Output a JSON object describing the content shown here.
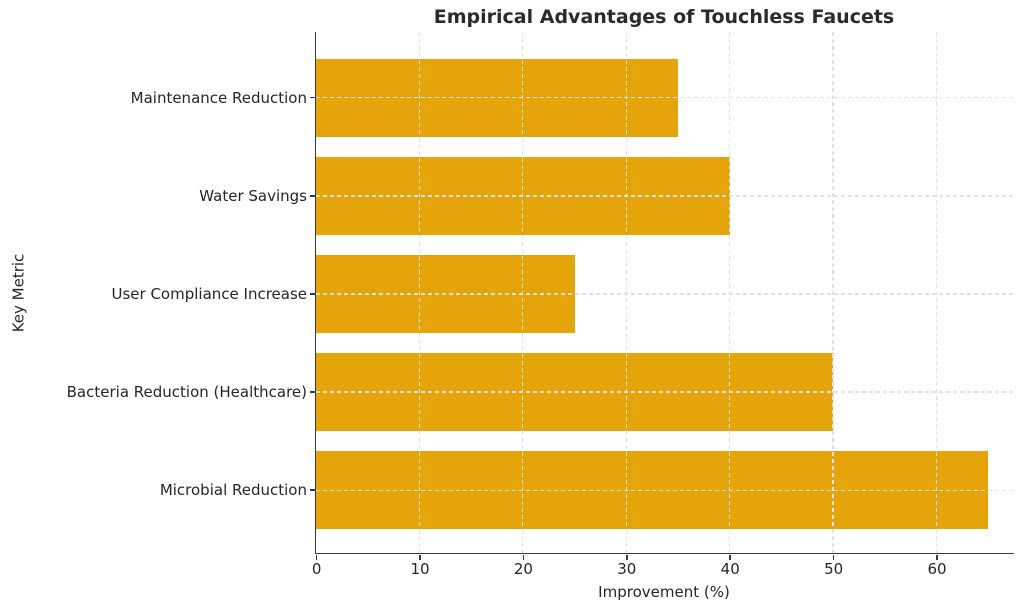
{
  "chart_data": {
    "type": "bar",
    "orientation": "horizontal",
    "title": "Empirical Advantages of Touchless Faucets",
    "xlabel": "Improvement (%)",
    "ylabel": "Key Metric",
    "categories": [
      "Maintenance Reduction",
      "Water Savings",
      "User Compliance Increase",
      "Bacteria Reduction (Healthcare)",
      "Microbial Reduction"
    ],
    "values": [
      35,
      40,
      25,
      50,
      65
    ],
    "xticks": [
      0,
      10,
      20,
      30,
      40,
      50,
      60
    ],
    "xlim": [
      0,
      67.5
    ],
    "bar_thickness": 0.8,
    "grid": "dashed",
    "grid_over_bars": true,
    "legend": false,
    "spines": [
      "left",
      "bottom"
    ],
    "colors": {
      "bar": "#E5A40A",
      "grid": "#e2e2e2",
      "axis": "#3a3a3a",
      "text": "#262626",
      "title": "#2b2b2b",
      "background": "#ffffff"
    }
  }
}
